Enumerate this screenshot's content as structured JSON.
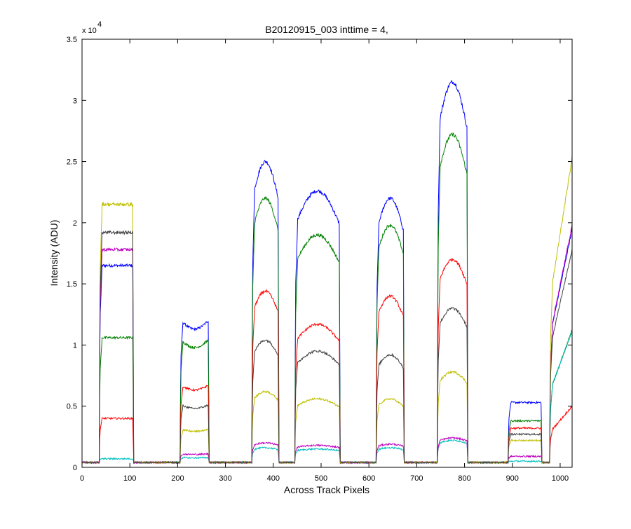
{
  "chart_data": {
    "type": "line",
    "title": "B20120915_003 inttime = 4,",
    "xlabel": "Across Track Pixels",
    "ylabel": "Intensity (ADU)",
    "y_exponent_label": "x 10",
    "y_exponent_power": "4",
    "xlim": [
      0,
      1025
    ],
    "ylim": [
      0,
      3.5
    ],
    "xticks": [
      0,
      100,
      200,
      300,
      400,
      500,
      600,
      700,
      800,
      900,
      1000
    ],
    "yticks": [
      0,
      0.5,
      1,
      1.5,
      2,
      2.5,
      3,
      3.5
    ],
    "ytick_labels": [
      "0",
      "0.5",
      "1",
      "1.5",
      "2",
      "2.5",
      "3",
      "3.5"
    ],
    "grid": false,
    "baseline": 0.04,
    "noise": 0.012,
    "segments": [
      {
        "x0": 38,
        "x1": 106,
        "slope": "flat",
        "trailing": "drop"
      },
      {
        "x0": 207,
        "x1": 264,
        "slope": "dip",
        "trailing": "drop"
      },
      {
        "x0": 357,
        "x1": 410,
        "slope": "peak",
        "trailing": "drop"
      },
      {
        "x0": 447,
        "x1": 538,
        "slope": "peak",
        "trailing": "drop"
      },
      {
        "x0": 617,
        "x1": 672,
        "slope": "peak",
        "trailing": "drop"
      },
      {
        "x0": 745,
        "x1": 805,
        "slope": "peak",
        "trailing": "drop"
      },
      {
        "x0": 893,
        "x1": 960,
        "slope": "flat",
        "trailing": "drop"
      },
      {
        "x0": 980,
        "x1": 1025,
        "slope": "rise",
        "trailing": "none"
      }
    ],
    "series": [
      {
        "color": "#0000ff",
        "levels": [
          1.65,
          1.2,
          2.5,
          2.26,
          2.2,
          3.15,
          0.53,
          1.95
        ]
      },
      {
        "color": "#008000",
        "levels": [
          1.06,
          1.04,
          2.2,
          1.9,
          1.98,
          2.72,
          0.38,
          1.12
        ]
      },
      {
        "color": "#ff0000",
        "levels": [
          0.4,
          0.67,
          1.44,
          1.17,
          1.4,
          1.7,
          0.32,
          0.5
        ]
      },
      {
        "color": "#00bfbf",
        "levels": [
          0.07,
          0.08,
          0.16,
          0.15,
          0.16,
          0.22,
          0.05,
          1.12
        ]
      },
      {
        "color": "#bf00bf",
        "levels": [
          1.78,
          0.11,
          0.2,
          0.18,
          0.19,
          0.24,
          0.09,
          1.98
        ]
      },
      {
        "color": "#bfbf00",
        "levels": [
          2.15,
          0.31,
          0.62,
          0.56,
          0.56,
          0.78,
          0.22,
          2.53
        ]
      },
      {
        "color": "#404040",
        "levels": [
          1.92,
          0.51,
          1.04,
          0.95,
          0.92,
          1.3,
          0.27,
          1.78
        ]
      }
    ]
  }
}
